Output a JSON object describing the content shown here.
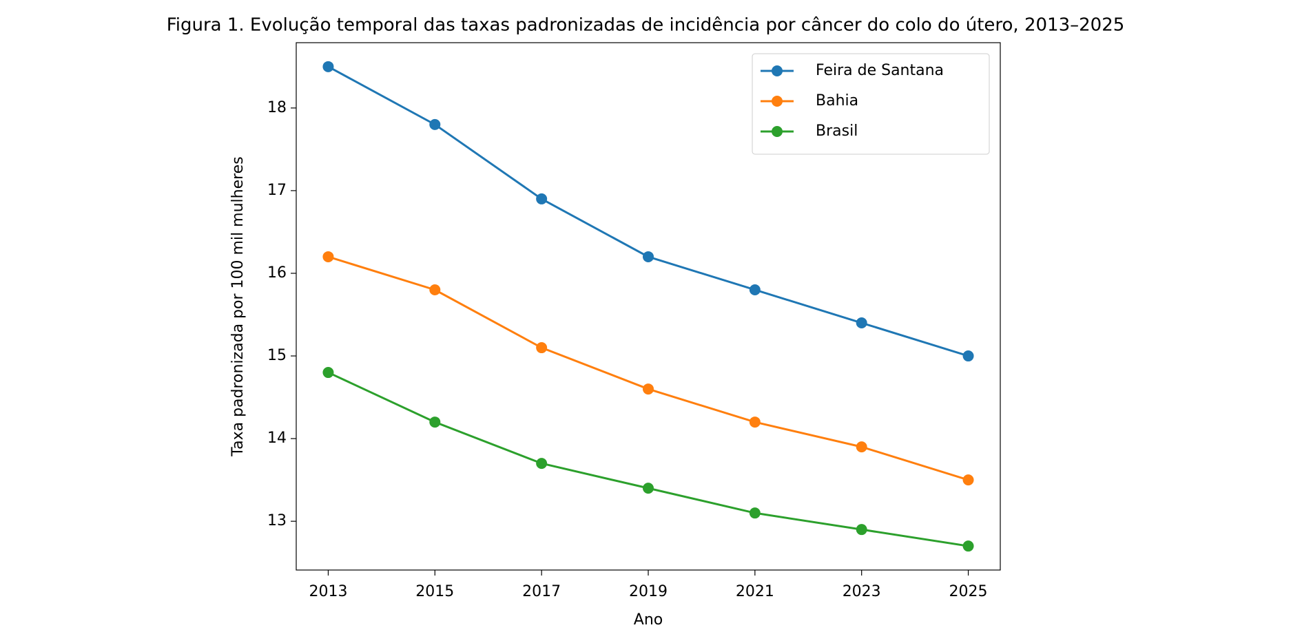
{
  "chart_data": {
    "type": "line",
    "title": "Figura 1. Evolução temporal das taxas padronizadas de incidência por câncer do colo do útero, 2013–2025",
    "x_label": "Ano",
    "y_label": "Taxa padronizada por 100 mil mulheres",
    "x": [
      2013,
      2015,
      2017,
      2019,
      2021,
      2023,
      2025
    ],
    "series": [
      {
        "name": "Feira de Santana",
        "color": "#1f77b4",
        "values": [
          18.5,
          17.8,
          16.9,
          16.2,
          15.8,
          15.4,
          15.0
        ]
      },
      {
        "name": "Bahia",
        "color": "#ff7f0e",
        "values": [
          16.2,
          15.8,
          15.1,
          14.6,
          14.2,
          13.9,
          13.5
        ]
      },
      {
        "name": "Brasil",
        "color": "#2ca02c",
        "values": [
          14.8,
          14.2,
          13.7,
          13.4,
          13.1,
          12.9,
          12.7
        ]
      }
    ],
    "xlim": [
      2012.4,
      2025.6
    ],
    "ylim": [
      12.41,
      18.79
    ],
    "xticks": [
      2013,
      2015,
      2017,
      2019,
      2021,
      2023,
      2025
    ],
    "yticks": [
      13,
      14,
      15,
      16,
      17,
      18
    ],
    "legend": "upper right",
    "grid": false
  }
}
